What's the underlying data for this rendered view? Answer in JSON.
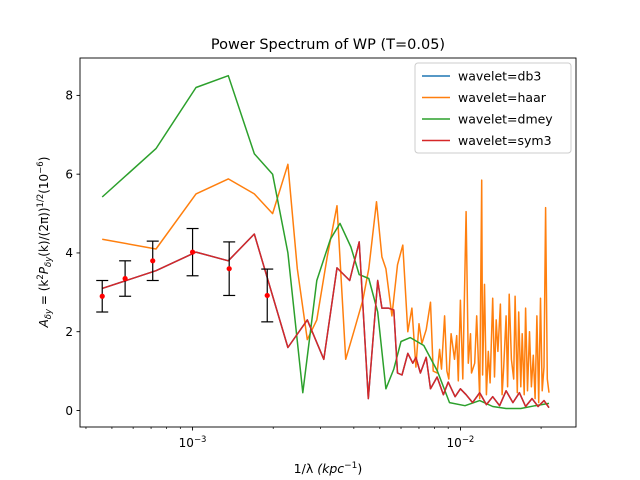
{
  "chart_data": {
    "type": "line",
    "title": "Power Spectrum of WP (T=0.05)",
    "xlabel": "1/λ (kpc⁻¹)",
    "xlabel_main": "1/λ",
    "xlabel_unit": "kpc",
    "xlabel_exp": "−1",
    "ylabel": "Aδy = (k²Pδy(k)/(2π))¹ᐟ²(10⁻⁶)",
    "ylabel_parts": {
      "A": "A",
      "A_sub": "δy",
      "mid": " = (k",
      "k_sup": "2",
      "P": "P",
      "P_sub": "δy",
      "rest": "(k)/(2π))",
      "half": "1/2",
      "tail": "(10",
      "tail_exp": "−6",
      "close": ")"
    },
    "xscale": "log",
    "xlim": [
      0.00038,
      0.027
    ],
    "ylim": [
      -0.42,
      8.95
    ],
    "xticks": [
      {
        "value": 0.001,
        "base": "10",
        "exp": "−3"
      },
      {
        "value": 0.01,
        "base": "10",
        "exp": "−2"
      }
    ],
    "yticks": [
      0,
      2,
      4,
      6,
      8
    ],
    "grid": false,
    "legend_position": "upper right",
    "series": [
      {
        "name": "wavelet=db3",
        "color": "#1f77b4",
        "x": [
          0.00046,
          0.00073,
          0.00103,
          0.00136,
          0.0017,
          0.00227,
          0.00268,
          0.00309,
          0.00346,
          0.00386,
          0.00419,
          0.00453,
          0.00491,
          0.00509,
          0.00538,
          0.00564,
          0.00582,
          0.00605,
          0.00636,
          0.00664,
          0.00682,
          0.00709,
          0.00745,
          0.00773,
          0.00818,
          0.00864,
          0.009,
          0.00955,
          0.01,
          0.0105,
          0.0111,
          0.0118,
          0.0125,
          0.0132,
          0.014,
          0.0148,
          0.0157,
          0.0166,
          0.0175,
          0.0185,
          0.0195,
          0.0205,
          0.0214
        ],
        "y": [
          3.1,
          3.55,
          4.02,
          3.8,
          4.48,
          1.6,
          2.3,
          1.3,
          3.62,
          3.3,
          4.28,
          0.3,
          3.3,
          2.6,
          2.6,
          2.55,
          0.95,
          0.9,
          1.45,
          1.2,
          1.35,
          0.95,
          1.35,
          0.55,
          0.85,
          0.4,
          0.72,
          0.35,
          0.55,
          0.4,
          0.2,
          0.45,
          0.15,
          0.35,
          0.12,
          0.5,
          0.2,
          0.45,
          0.1,
          0.3,
          0.1,
          0.25,
          0.07
        ]
      },
      {
        "name": "wavelet=haar",
        "color": "#ff7f0e",
        "x": [
          0.00046,
          0.00073,
          0.00103,
          0.00136,
          0.0017,
          0.00199,
          0.00227,
          0.00246,
          0.00268,
          0.00291,
          0.00318,
          0.00346,
          0.00373,
          0.004,
          0.00432,
          0.00455,
          0.00486,
          0.00509,
          0.00527,
          0.00555,
          0.00582,
          0.00609,
          0.00636,
          0.00659,
          0.00682,
          0.007,
          0.00718,
          0.00745,
          0.00773,
          0.00791,
          0.00818,
          0.00836,
          0.0085,
          0.00873,
          0.0089,
          0.00905,
          0.00923,
          0.0095,
          0.00968,
          0.00982,
          0.01,
          0.0102,
          0.0105,
          0.0107,
          0.0109,
          0.011,
          0.0113,
          0.0115,
          0.0118,
          0.012,
          0.0121,
          0.0123,
          0.0125,
          0.0127,
          0.0129,
          0.0132,
          0.0134,
          0.0136,
          0.0138,
          0.0141,
          0.0143,
          0.0145,
          0.0148,
          0.015,
          0.0152,
          0.0155,
          0.0158,
          0.016,
          0.0163,
          0.0165,
          0.0168,
          0.017,
          0.0173,
          0.0175,
          0.0178,
          0.0181,
          0.0184,
          0.0187,
          0.019,
          0.0193,
          0.0196,
          0.0199,
          0.0202,
          0.0205,
          0.0208,
          0.0211,
          0.0214
        ],
        "y": [
          4.35,
          4.1,
          5.5,
          5.88,
          5.5,
          5.0,
          6.25,
          3.6,
          1.8,
          2.3,
          3.9,
          5.2,
          1.3,
          2.0,
          2.8,
          3.6,
          5.3,
          3.9,
          3.6,
          2.4,
          3.7,
          4.2,
          2.0,
          2.6,
          1.1,
          2.2,
          1.7,
          2.05,
          2.75,
          1.0,
          0.95,
          1.55,
          1.05,
          2.4,
          1.0,
          0.8,
          1.95,
          1.3,
          1.9,
          0.75,
          2.8,
          0.8,
          5.05,
          1.2,
          1.95,
          0.95,
          1.2,
          2.4,
          0.3,
          5.85,
          0.9,
          3.2,
          0.4,
          1.5,
          0.7,
          2.85,
          0.85,
          2.3,
          1.5,
          2.7,
          0.4,
          1.1,
          2.4,
          0.6,
          2.95,
          1.3,
          0.8,
          2.9,
          0.45,
          2.5,
          0.6,
          1.95,
          0.4,
          2.6,
          0.5,
          2.0,
          0.6,
          1.4,
          0.3,
          2.4,
          0.2,
          2.85,
          0.5,
          1.1,
          5.15,
          0.8,
          0.45
        ]
      },
      {
        "name": "wavelet=dmey",
        "color": "#2ca02c",
        "x": [
          0.00046,
          0.00073,
          0.00103,
          0.00136,
          0.0017,
          0.00199,
          0.00227,
          0.00258,
          0.00291,
          0.00327,
          0.00355,
          0.0039,
          0.00419,
          0.00455,
          0.00491,
          0.00527,
          0.00564,
          0.006,
          0.0065,
          0.0073,
          0.0082,
          0.0091,
          0.0104,
          0.0118,
          0.0132,
          0.0148,
          0.0168,
          0.019,
          0.0214
        ],
        "y": [
          5.42,
          6.65,
          8.2,
          8.5,
          6.52,
          6.0,
          4.0,
          0.45,
          3.3,
          4.35,
          4.75,
          4.15,
          3.45,
          3.35,
          2.5,
          0.55,
          1.05,
          1.75,
          1.85,
          1.65,
          1.0,
          0.2,
          0.12,
          0.25,
          0.1,
          0.05,
          0.05,
          0.12,
          0.18
        ]
      },
      {
        "name": "wavelet=sym3",
        "color": "#d62728",
        "x": [
          0.00046,
          0.00073,
          0.00103,
          0.00136,
          0.0017,
          0.00227,
          0.00268,
          0.00309,
          0.00346,
          0.00386,
          0.00419,
          0.00453,
          0.00491,
          0.00509,
          0.00538,
          0.00564,
          0.00582,
          0.00605,
          0.00636,
          0.00664,
          0.00682,
          0.00709,
          0.00745,
          0.00773,
          0.00818,
          0.00864,
          0.009,
          0.00955,
          0.01,
          0.0105,
          0.0111,
          0.0118,
          0.0125,
          0.0132,
          0.014,
          0.0148,
          0.0157,
          0.0166,
          0.0175,
          0.0185,
          0.0195,
          0.0205,
          0.0214
        ],
        "y": [
          3.1,
          3.55,
          4.02,
          3.8,
          4.48,
          1.6,
          2.3,
          1.3,
          3.62,
          3.3,
          4.28,
          0.3,
          3.3,
          2.6,
          2.6,
          2.55,
          0.95,
          0.9,
          1.45,
          1.2,
          1.35,
          0.95,
          1.35,
          0.55,
          0.85,
          0.4,
          0.72,
          0.35,
          0.55,
          0.4,
          0.2,
          0.45,
          0.15,
          0.35,
          0.12,
          0.5,
          0.2,
          0.45,
          0.1,
          0.3,
          0.1,
          0.25,
          0.07
        ]
      }
    ],
    "errorbars": {
      "color": "#000000",
      "marker_color": "#ff0000",
      "points": [
        {
          "x": 0.00046,
          "y": 2.9,
          "err": 0.4
        },
        {
          "x": 0.00056,
          "y": 3.35,
          "err": 0.45
        },
        {
          "x": 0.00071,
          "y": 3.8,
          "err": 0.5
        },
        {
          "x": 0.001,
          "y": 4.02,
          "err": 0.6
        },
        {
          "x": 0.00137,
          "y": 3.6,
          "err": 0.68
        },
        {
          "x": 0.0019,
          "y": 2.92,
          "err": 0.67
        }
      ]
    }
  }
}
